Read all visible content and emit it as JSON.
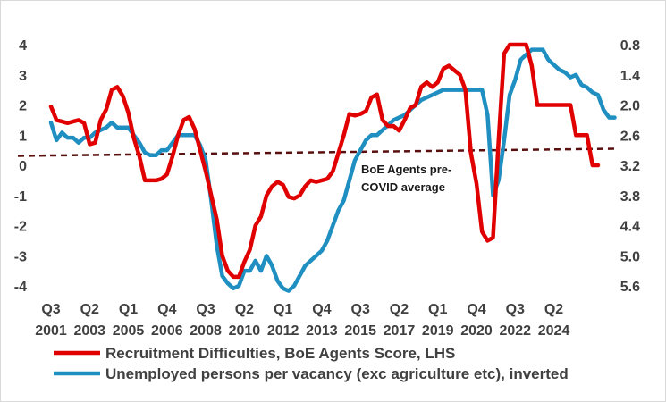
{
  "chart_data": {
    "type": "line",
    "title": "",
    "colors": {
      "recruitment": "#e00000",
      "unemployed": "#1f8fc1",
      "average": "#5a0f0f"
    },
    "left_axis": {
      "min": -4,
      "max": 4,
      "ticks": [
        "4",
        "3",
        "2",
        "1",
        "0",
        "-1",
        "-2",
        "-3",
        "-4"
      ]
    },
    "right_axis": {
      "min": 0.8,
      "max": 5.6,
      "inverted": true,
      "ticks": [
        "0.8",
        "1.4",
        "2.0",
        "2.6",
        "3.2",
        "3.8",
        "4.4",
        "5.0",
        "5.6"
      ]
    },
    "x_tick_labels": [
      {
        "line1": "Q3",
        "line2": "2001"
      },
      {
        "line1": "Q2",
        "line2": "2003"
      },
      {
        "line1": "Q1",
        "line2": "2005"
      },
      {
        "line1": "Q4",
        "line2": "2006"
      },
      {
        "line1": "Q3",
        "line2": "2008"
      },
      {
        "line1": "Q2",
        "line2": "2010"
      },
      {
        "line1": "Q1",
        "line2": "2012"
      },
      {
        "line1": "Q4",
        "line2": "2013"
      },
      {
        "line1": "Q3",
        "line2": "2015"
      },
      {
        "line1": "Q2",
        "line2": "2017"
      },
      {
        "line1": "Q1",
        "line2": "2019"
      },
      {
        "line1": "Q4",
        "line2": "2020"
      },
      {
        "line1": "Q3",
        "line2": "2022"
      },
      {
        "line1": "Q2",
        "line2": "2024"
      }
    ],
    "average_line": {
      "value": 0.43,
      "label_line1": "BoE Agents pre-",
      "label_line2": "COVID average"
    },
    "series": [
      {
        "name": "Recruitment Difficulties, BoE Agents Score, LHS",
        "axis": "left",
        "x_start": "2001Q3",
        "values": [
          1.95,
          1.5,
          1.45,
          1.4,
          1.45,
          1.5,
          1.4,
          0.7,
          0.75,
          1.5,
          1.85,
          2.5,
          2.6,
          2.3,
          1.75,
          0.9,
          0.3,
          -0.5,
          -0.5,
          -0.5,
          -0.45,
          -0.3,
          0.3,
          1.0,
          1.5,
          1.6,
          1.2,
          0.5,
          -0.2,
          -1.0,
          -1.8,
          -3.0,
          -3.5,
          -3.7,
          -3.7,
          -3.2,
          -2.8,
          -2.0,
          -1.7,
          -1.0,
          -0.7,
          -0.55,
          -0.65,
          -1.05,
          -1.1,
          -1.0,
          -0.7,
          -0.5,
          -0.55,
          -0.5,
          -0.45,
          -0.2,
          0.4,
          1.0,
          1.7,
          1.65,
          1.7,
          1.8,
          2.25,
          2.35,
          1.5,
          1.3,
          1.3,
          1.15,
          1.5,
          1.9,
          2.0,
          2.6,
          2.75,
          2.6,
          2.75,
          3.2,
          3.3,
          3.15,
          3.0,
          2.5,
          0.4,
          -0.6,
          -2.2,
          -2.5,
          -2.4,
          0.8,
          3.7,
          4.0,
          4.0,
          4.0,
          4.0,
          3.3,
          2.0,
          2.0,
          2.0,
          2.0,
          2.0,
          2.0,
          2.0,
          1.0,
          1.0,
          1.0,
          0.0,
          0.0
        ]
      },
      {
        "name": "Unemployed persons per vacancy (exc agriculture etc), inverted",
        "axis": "right",
        "x_start": "2001Q3",
        "values": [
          2.35,
          2.7,
          2.55,
          2.65,
          2.65,
          2.75,
          2.65,
          2.65,
          2.55,
          2.5,
          2.45,
          2.35,
          2.45,
          2.45,
          2.45,
          2.6,
          2.75,
          2.95,
          3.0,
          3.0,
          2.9,
          2.9,
          2.75,
          2.6,
          2.6,
          2.6,
          2.6,
          2.8,
          3.1,
          3.9,
          4.8,
          5.4,
          5.55,
          5.65,
          5.6,
          5.3,
          5.3,
          5.1,
          5.3,
          5.0,
          5.2,
          5.5,
          5.65,
          5.7,
          5.6,
          5.4,
          5.2,
          5.1,
          5.0,
          4.9,
          4.7,
          4.4,
          4.1,
          3.9,
          3.5,
          3.1,
          2.9,
          2.7,
          2.6,
          2.6,
          2.5,
          2.4,
          2.3,
          2.25,
          2.2,
          2.1,
          2.0,
          1.9,
          1.85,
          1.8,
          1.75,
          1.7,
          1.7,
          1.7,
          1.7,
          1.7,
          1.7,
          1.7,
          1.7,
          2.2,
          3.8,
          3.5,
          2.7,
          1.8,
          1.5,
          1.1,
          1.0,
          0.9,
          0.9,
          0.9,
          1.1,
          1.2,
          1.3,
          1.35,
          1.45,
          1.4,
          1.6,
          1.65,
          1.75,
          1.8,
          2.1,
          2.25,
          2.25
        ]
      }
    ],
    "legend": {
      "placement": "bottom"
    }
  }
}
